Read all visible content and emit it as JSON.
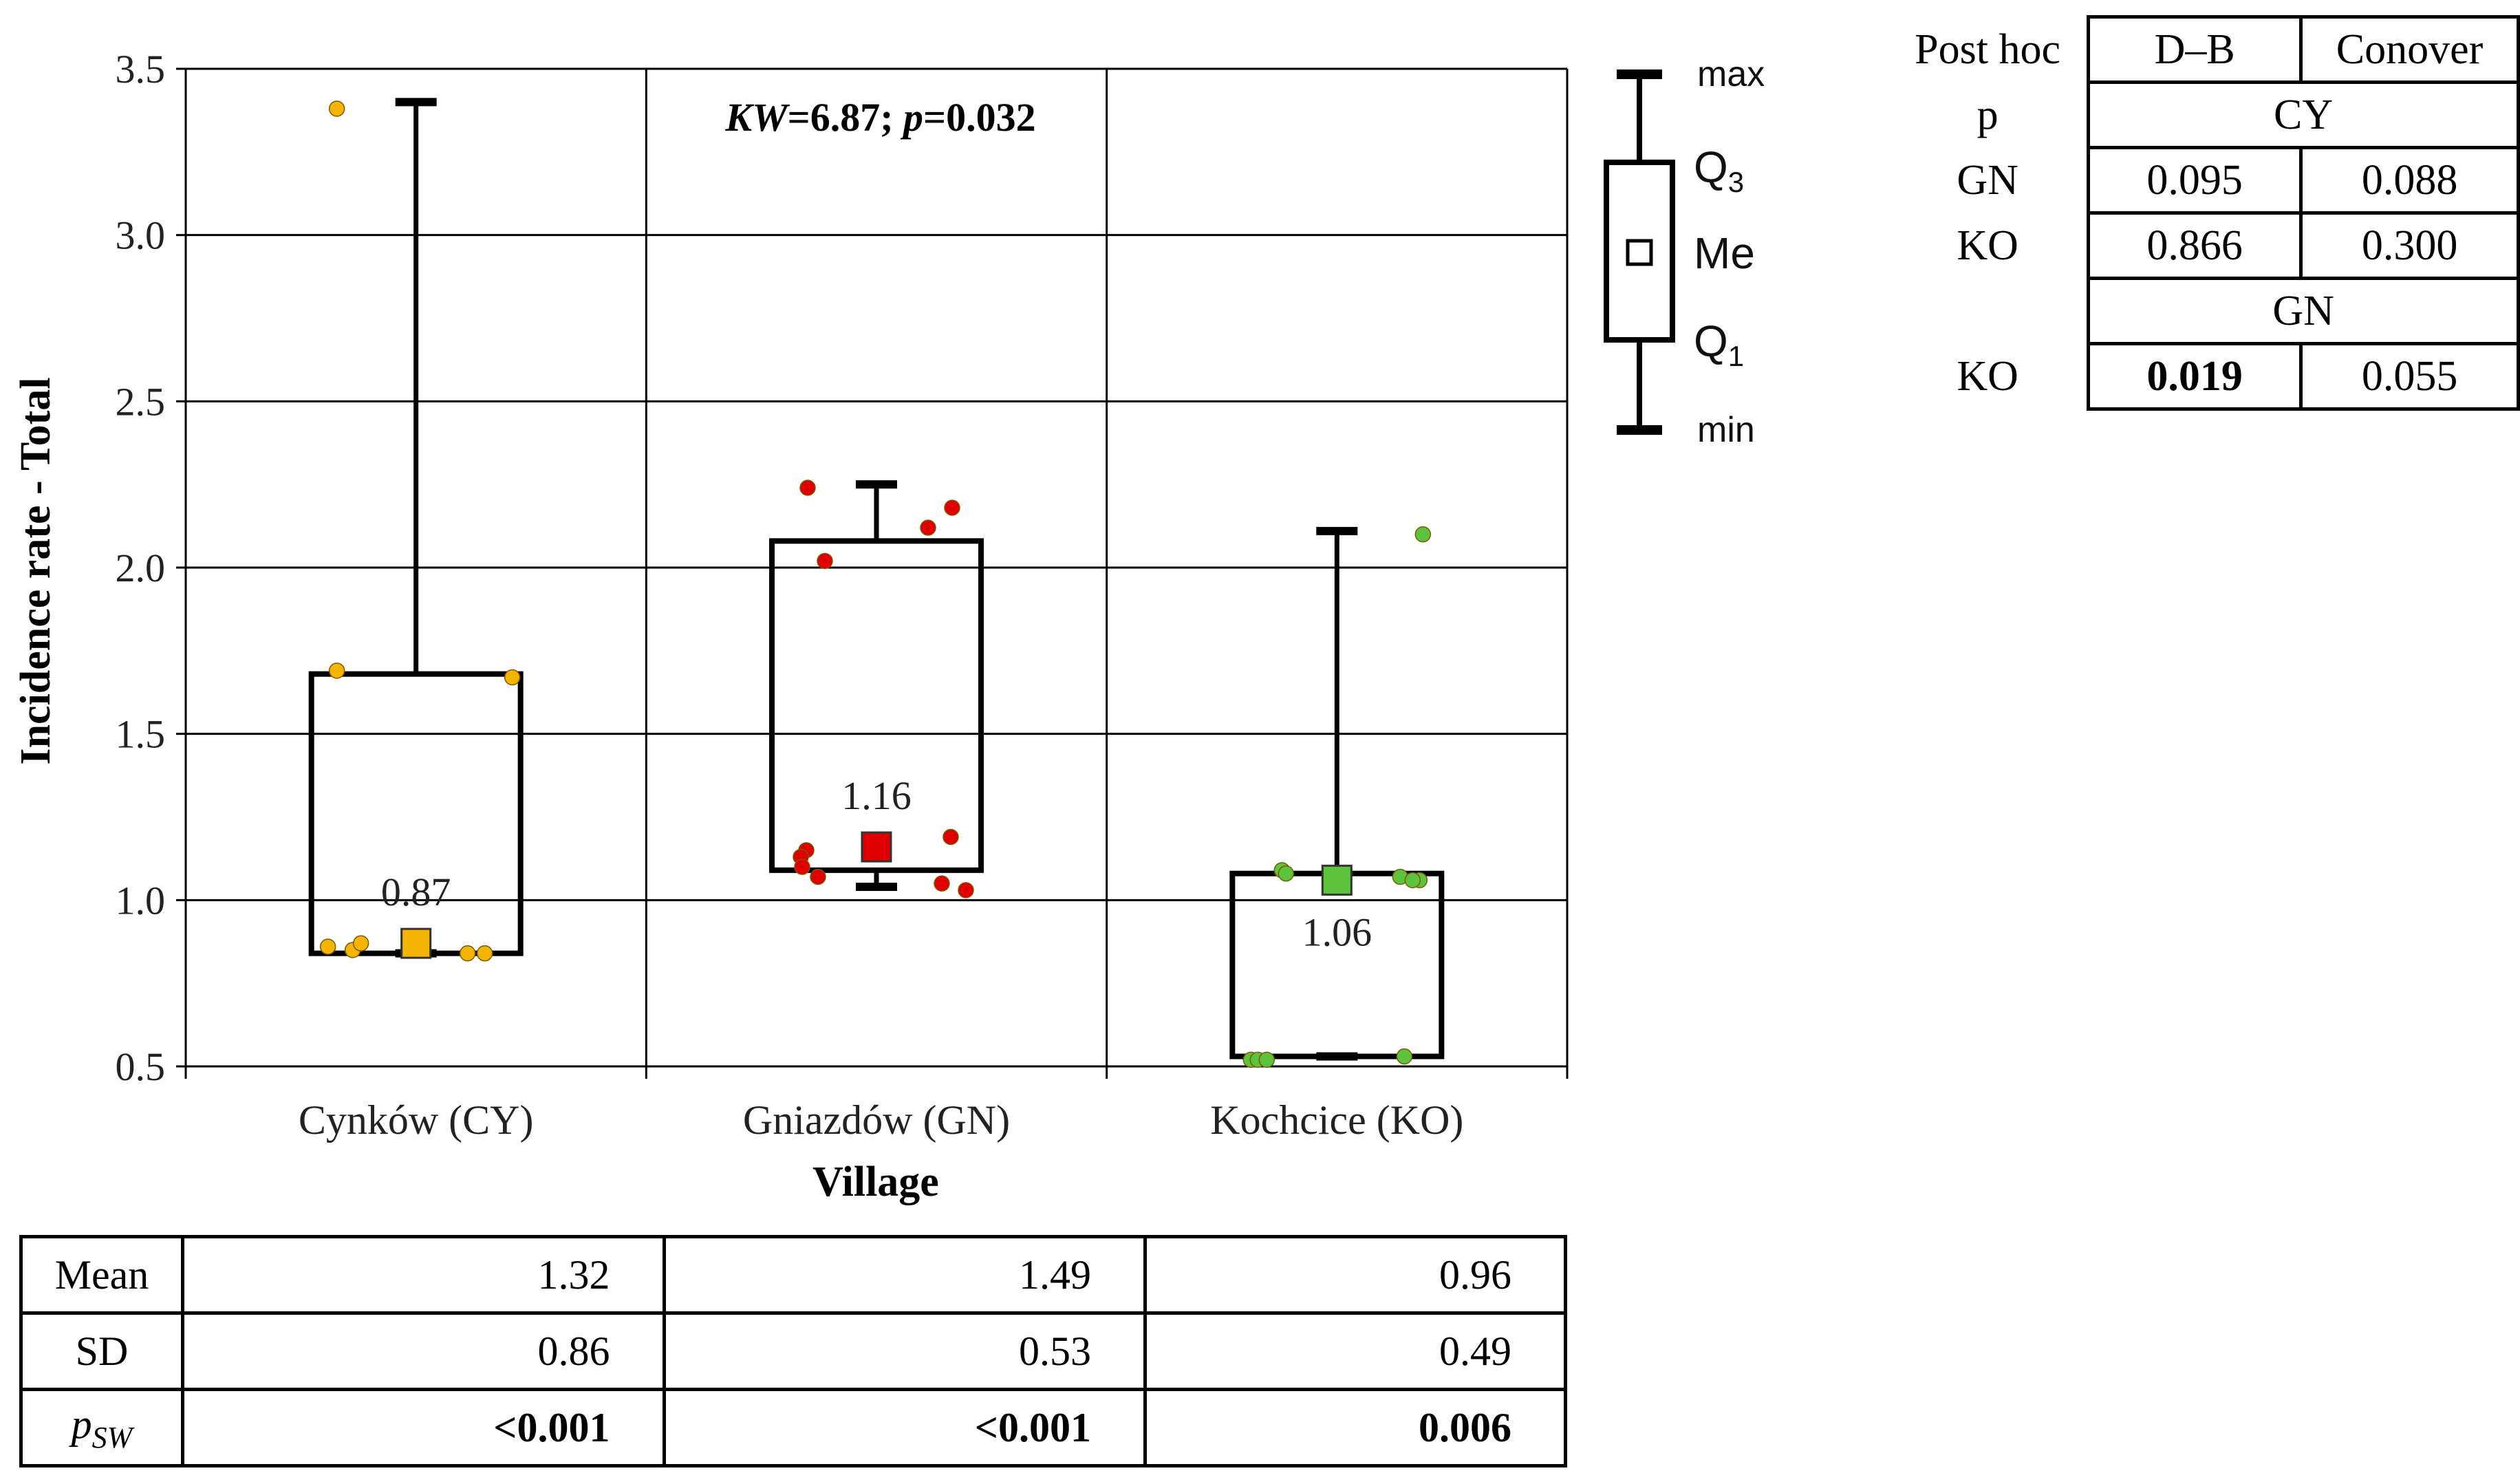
{
  "chart_data": {
    "type": "box",
    "ylabel": "Incidence rate - Total",
    "xlabel": "Village",
    "ylim": [
      0.5,
      3.5
    ],
    "yticks": [
      "0.5",
      "1.0",
      "1.5",
      "2.0",
      "2.5",
      "3.0",
      "3.5"
    ],
    "grid": true,
    "annotation": {
      "kw_label": "KW",
      "kw_value": "=6.87; ",
      "p_label": "p",
      "p_value": "=0.032"
    },
    "categories": [
      "Cynków (CY)",
      "Gniazdów (GN)",
      "Kochcice (KO)"
    ],
    "groups": [
      {
        "name": "Cynków (CY)",
        "color": "#F5B400",
        "min": 0.84,
        "q1": 0.84,
        "median": 0.87,
        "q3": 1.68,
        "max": 3.4,
        "median_label": "0.87",
        "points": [
          3.38,
          1.69,
          1.67,
          0.86,
          0.85,
          0.87,
          0.84,
          0.84
        ]
      },
      {
        "name": "Gniazdów (GN)",
        "color": "#E00000",
        "min": 1.04,
        "q1": 1.09,
        "median": 1.16,
        "q3": 2.08,
        "max": 2.25,
        "median_label": "1.16",
        "points": [
          2.24,
          2.18,
          2.12,
          2.02,
          1.15,
          1.13,
          1.1,
          1.07,
          1.19,
          1.05,
          1.03
        ]
      },
      {
        "name": "Kochcice (KO)",
        "color": "#5CC43C",
        "min": 0.53,
        "q1": 0.53,
        "median": 1.06,
        "q3": 1.08,
        "max": 2.11,
        "median_label": "1.06",
        "points": [
          2.1,
          1.09,
          1.08,
          1.07,
          1.06,
          1.06,
          0.52,
          0.52,
          0.52,
          0.53
        ]
      }
    ]
  },
  "legend": {
    "max": "max",
    "q3": "Q",
    "q3_sub": "3",
    "me": "Me",
    "q1": "Q",
    "q1_sub": "1",
    "min": "min"
  },
  "stats_table": {
    "rows": [
      {
        "label": "Mean",
        "values": [
          "1.32",
          "1.49",
          "0.96"
        ],
        "bold": false
      },
      {
        "label": "SD",
        "values": [
          "0.86",
          "0.53",
          "0.49"
        ],
        "bold": false
      },
      {
        "label_main": "p",
        "label_sub": "SW",
        "values": [
          "<0.001",
          "<0.001",
          "0.006"
        ],
        "bold": true
      }
    ]
  },
  "posthoc_table": {
    "title": "Post hoc",
    "col1": "D–B",
    "col2": "Conover",
    "p_label": "p",
    "group1": "CY",
    "row_gn": {
      "label": "GN",
      "db": "0.095",
      "conover": "0.088"
    },
    "row_ko1": {
      "label": "KO",
      "db": "0.866",
      "conover": "0.300"
    },
    "group2": "GN",
    "row_ko2": {
      "label": "KO",
      "db": "0.019",
      "conover": "0.055"
    }
  }
}
